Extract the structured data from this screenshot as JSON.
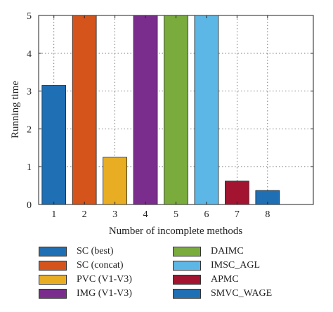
{
  "chart_data": {
    "type": "bar",
    "categories": [
      "1",
      "2",
      "3",
      "4",
      "5",
      "6",
      "7",
      "8"
    ],
    "series": [
      {
        "name": "SC (best)",
        "value": 3.15,
        "color": "#1f6fb5"
      },
      {
        "name": "SC (concat)",
        "value": 5,
        "color": "#d4541b"
      },
      {
        "name": "PVC (V1-V3)",
        "value": 1.25,
        "color": "#e8ad22"
      },
      {
        "name": "IMG (V1-V3)",
        "value": 5,
        "color": "#7b2d8e"
      },
      {
        "name": "DAIMC",
        "value": 5,
        "color": "#79ab3d"
      },
      {
        "name": "IMSC_AGL",
        "value": 5,
        "color": "#5cb7e6"
      },
      {
        "name": "APMC",
        "value": 0.62,
        "color": "#a2142f"
      },
      {
        "name": "SMVC_WAGE",
        "value": 0.37,
        "color": "#1f6fb5"
      }
    ],
    "xlabel": "Number of incomplete methods",
    "ylabel": "Running time",
    "xlim": [
      0.5,
      9.5
    ],
    "ylim": [
      0,
      5
    ],
    "yticks": [
      0,
      1,
      2,
      3,
      4,
      5
    ],
    "grid": true,
    "legend_position": "bottom"
  }
}
